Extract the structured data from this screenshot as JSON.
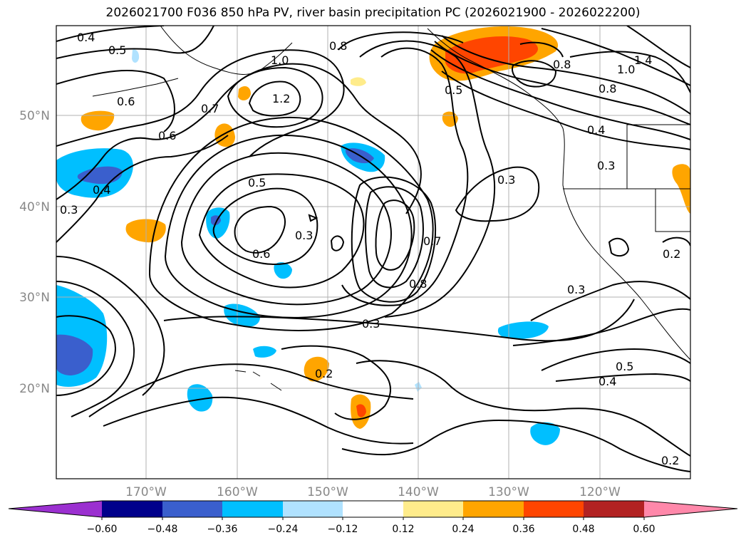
{
  "title": "2026021700 F036 850 hPa PV, river basin precipitation PC (2026021900 - 2026022200)",
  "map": {
    "lat_labels": [
      "50°N",
      "40°N",
      "30°N",
      "20°N"
    ],
    "lon_labels": [
      "170°W",
      "160°W",
      "150°W",
      "140°W",
      "130°W",
      "120°W"
    ],
    "pv_contour_labels": [
      "0.4",
      "0.5",
      "0.6",
      "0.7",
      "1.0",
      "1.2",
      "0.8",
      "1.4",
      "1.0",
      "0.8",
      "0.4",
      "0.3",
      "0.6",
      "0.4",
      "0.3",
      "0.5",
      "0.3",
      "0.6",
      "0.7",
      "0.8",
      "0.3",
      "0.2",
      "0.3",
      "0.5",
      "0.4",
      "0.2",
      "0.2",
      "0.3",
      "0.5",
      "0.8"
    ]
  },
  "colorbar": {
    "tick_labels": [
      "−0.60",
      "−0.48",
      "−0.36",
      "−0.24",
      "−0.12",
      "0.12",
      "0.24",
      "0.36",
      "0.48",
      "0.60"
    ],
    "colors": [
      "#9b30d0",
      "#00008b",
      "#3a5fcd",
      "#00bfff",
      "#b0e2ff",
      "#ffffff",
      "#ffec8b",
      "#ffa500",
      "#ff4500",
      "#b22222",
      "#ff88aa"
    ]
  }
}
